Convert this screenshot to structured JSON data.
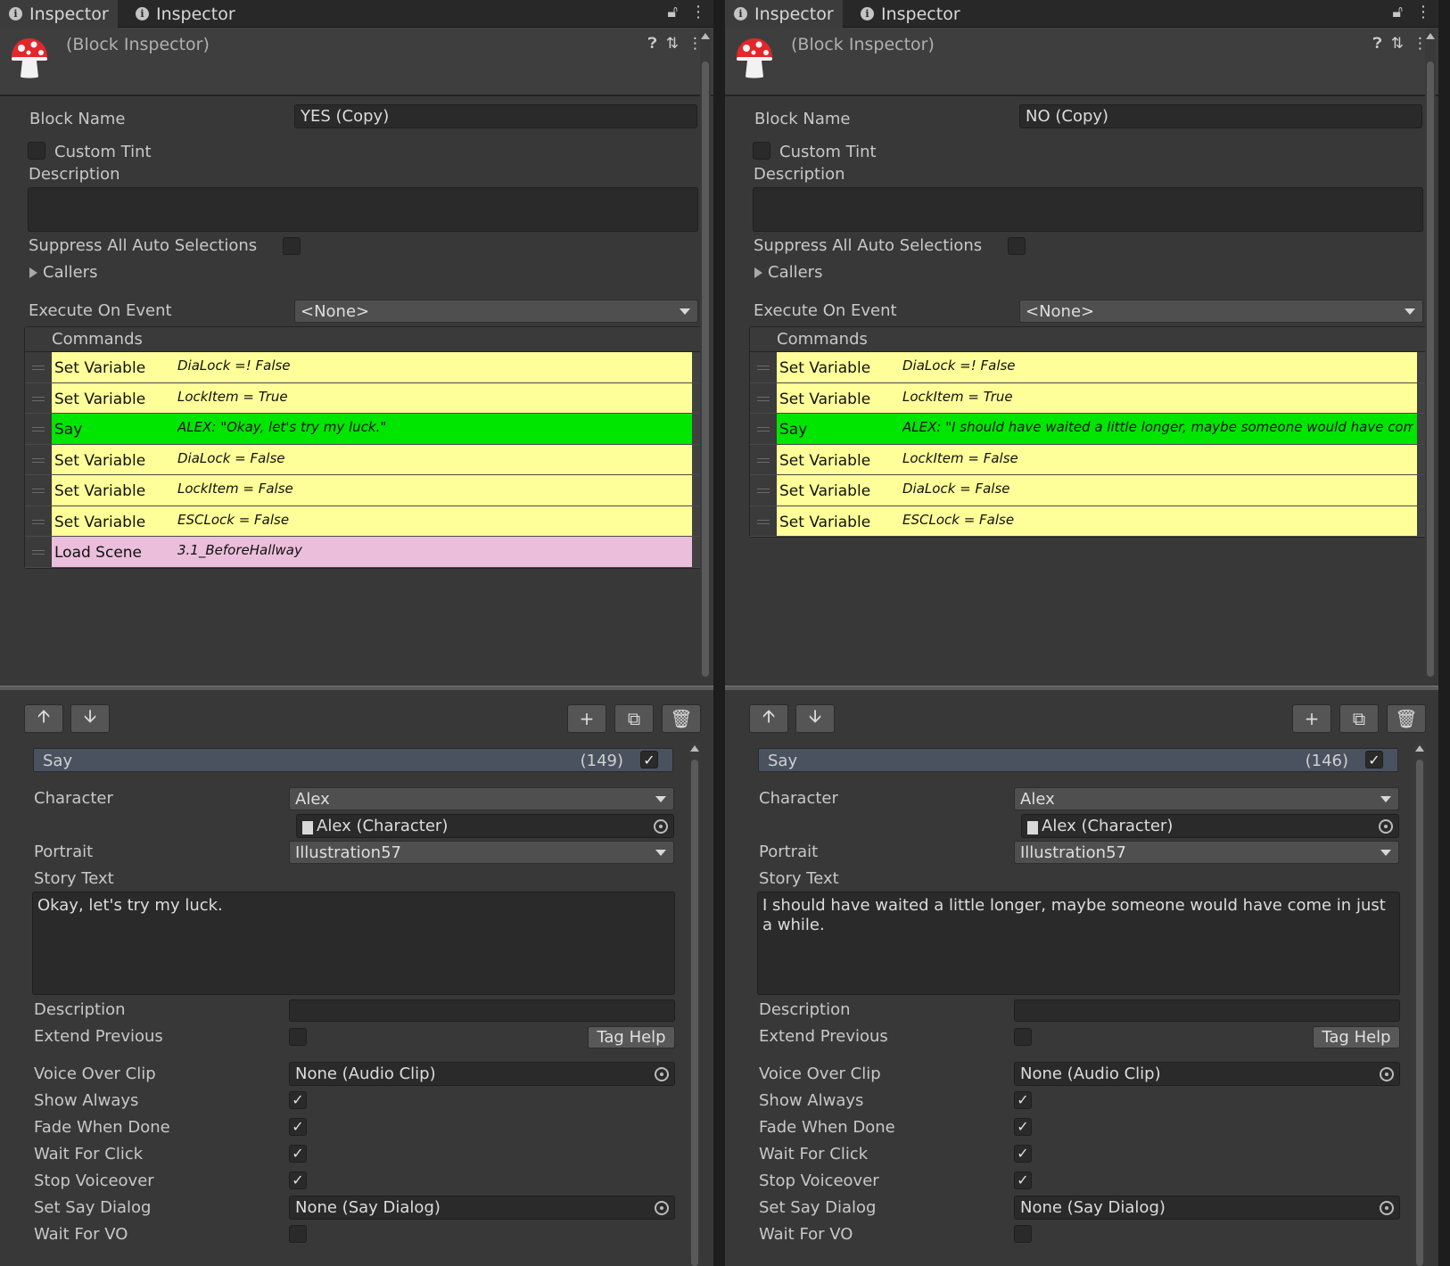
{
  "panels": [
    {
      "tabs": [
        "Inspector",
        "Inspector"
      ],
      "header_title": "(Block Inspector)",
      "block_name_label": "Block Name",
      "block_name_value": "YES (Copy)",
      "custom_tint_label": "Custom Tint",
      "description_label": "Description",
      "suppress_label": "Suppress All Auto Selections",
      "callers_label": "Callers",
      "execute_label": "Execute On Event",
      "execute_value": "<None>",
      "commands_label": "Commands",
      "commands": [
        {
          "name": "Set Variable",
          "summary": "DiaLock =! False",
          "color": "#ffff99"
        },
        {
          "name": "Set Variable",
          "summary": "LockItem = True",
          "color": "#ffff99"
        },
        {
          "name": "Say",
          "summary": "ALEX: \"Okay, let's try my luck.\"",
          "color": "#00e600"
        },
        {
          "name": "Set Variable",
          "summary": "DiaLock = False",
          "color": "#ffff99"
        },
        {
          "name": "Set Variable",
          "summary": "LockItem = False",
          "color": "#ffff99"
        },
        {
          "name": "Set Variable",
          "summary": "ESCLock = False",
          "color": "#ffff99"
        },
        {
          "name": "Load Scene",
          "summary": "3.1_BeforeHallway",
          "color": "#ebbedb"
        }
      ],
      "say": {
        "title": "Say",
        "count": "(149)",
        "character_label": "Character",
        "character_value": "Alex",
        "character_object": "Alex (Character)",
        "portrait_label": "Portrait",
        "portrait_value": "Illustration57",
        "story_text_label": "Story Text",
        "story_text": "Okay, let's try my luck.",
        "description_label": "Description",
        "extend_previous_label": "Extend Previous",
        "tag_help": "Tag Help",
        "voice_over_label": "Voice Over Clip",
        "voice_over_value": "None (Audio Clip)",
        "show_always_label": "Show Always",
        "fade_label": "Fade When Done",
        "wait_click_label": "Wait For Click",
        "stop_voiceover_label": "Stop Voiceover",
        "set_say_dialog_label": "Set Say Dialog",
        "set_say_dialog_value": "None (Say Dialog)",
        "wait_vo_label": "Wait For VO"
      }
    },
    {
      "tabs": [
        "Inspector",
        "Inspector"
      ],
      "header_title": "(Block Inspector)",
      "block_name_label": "Block Name",
      "block_name_value": "NO (Copy)",
      "custom_tint_label": "Custom Tint",
      "description_label": "Description",
      "suppress_label": "Suppress All Auto Selections",
      "callers_label": "Callers",
      "execute_label": "Execute On Event",
      "execute_value": "<None>",
      "commands_label": "Commands",
      "commands": [
        {
          "name": "Set Variable",
          "summary": "DiaLock =! False",
          "color": "#ffff99"
        },
        {
          "name": "Set Variable",
          "summary": "LockItem = True",
          "color": "#ffff99"
        },
        {
          "name": "Say",
          "summary": "ALEX: \"I should have waited a little longer, maybe someone would have come i",
          "color": "#00e600"
        },
        {
          "name": "Set Variable",
          "summary": "LockItem = False",
          "color": "#ffff99"
        },
        {
          "name": "Set Variable",
          "summary": "DiaLock = False",
          "color": "#ffff99"
        },
        {
          "name": "Set Variable",
          "summary": "ESCLock = False",
          "color": "#ffff99"
        }
      ],
      "say": {
        "title": "Say",
        "count": "(146)",
        "character_label": "Character",
        "character_value": "Alex",
        "character_object": "Alex (Character)",
        "portrait_label": "Portrait",
        "portrait_value": "Illustration57",
        "story_text_label": "Story Text",
        "story_text": "I should have waited a little longer, maybe someone would have come in just a while.",
        "description_label": "Description",
        "extend_previous_label": "Extend Previous",
        "tag_help": "Tag Help",
        "voice_over_label": "Voice Over Clip",
        "voice_over_value": "None (Audio Clip)",
        "show_always_label": "Show Always",
        "fade_label": "Fade When Done",
        "wait_click_label": "Wait For Click",
        "stop_voiceover_label": "Stop Voiceover",
        "set_say_dialog_label": "Set Say Dialog",
        "set_say_dialog_value": "None (Say Dialog)",
        "wait_vo_label": "Wait For VO"
      }
    }
  ],
  "icons": {
    "lock": "lock-icon",
    "menu": "kebab-menu-icon",
    "help": "help-icon",
    "presets": "presets-icon",
    "up": "arrow-up-icon",
    "down": "arrow-down-icon",
    "add": "plus-icon",
    "duplicate": "duplicate-icon",
    "delete": "trash-icon",
    "logo": "mushroom-icon"
  }
}
